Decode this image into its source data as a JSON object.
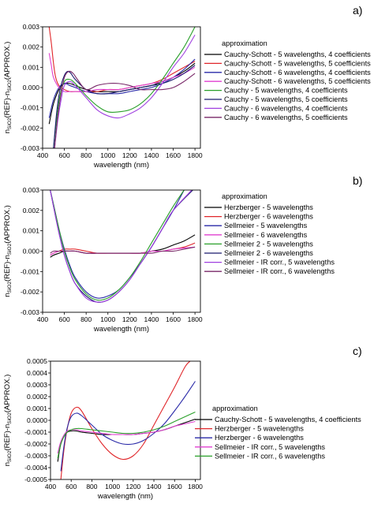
{
  "chart_data": [
    {
      "type": "line",
      "panel_label": "a)",
      "xlabel": "wavelength (nm)",
      "ylabel": "n_SiO2(REF)-n_SiO2(APPROX.)",
      "ylabel_parts": {
        "n": "n",
        "sub1": "SiO2",
        "mid": "(REF)-n",
        "sub2": "SiO2",
        "end": "(APPROX.)"
      },
      "xlim": [
        400,
        1850
      ],
      "ylim": [
        -0.003,
        0.003
      ],
      "xticks": [
        400,
        600,
        800,
        1000,
        1200,
        1400,
        1600,
        1800
      ],
      "yticks": [
        -0.003,
        -0.002,
        -0.001,
        0.0,
        0.001,
        0.002,
        0.003
      ],
      "ytick_labels": [
        "-0.003",
        "-0.002",
        "-0.001",
        "0.000",
        "0.001",
        "0.002",
        "0.003"
      ],
      "legend_title": "approximation",
      "legend_placement": "right",
      "series": [
        {
          "name": "Cauchy-Schott - 5 wavelengths, 4 coefficients",
          "color": "#000000",
          "x": [
            460,
            500,
            550,
            600,
            650,
            700,
            800,
            900,
            1000,
            1100,
            1200,
            1300,
            1400,
            1500,
            1600,
            1700,
            1800
          ],
          "y": [
            -0.0018,
            -0.0008,
            -0.0001,
            0.0002,
            0.0002,
            0.0001,
            -0.0001,
            -0.0002,
            -0.0002,
            -0.0002,
            -0.0001,
            0.0,
            0.0001,
            0.0003,
            0.0005,
            0.0008,
            0.0012
          ]
        },
        {
          "name": "Cauchy-Schott - 5 wavelengths, 5 coefficients",
          "color": "#e0262a",
          "x": [
            460,
            480,
            500,
            520,
            550,
            600,
            650,
            700,
            800,
            900,
            1000,
            1100,
            1200,
            1300,
            1400,
            1500,
            1600,
            1700,
            1800
          ],
          "y": [
            0.003,
            0.0022,
            0.0012,
            0.0005,
            0.0001,
            -0.0001,
            -0.0002,
            -0.0002,
            -0.0002,
            -0.0002,
            -0.0001,
            -0.0001,
            0.0,
            0.0001,
            0.0002,
            0.0004,
            0.0007,
            0.001,
            0.0013
          ]
        },
        {
          "name": "Cauchy-Schott - 6 wavelengths, 4 coefficients",
          "color": "#2a2aa8",
          "x": [
            460,
            500,
            550,
            600,
            650,
            700,
            800,
            900,
            1000,
            1100,
            1200,
            1300,
            1400,
            1500,
            1600,
            1700,
            1800
          ],
          "y": [
            -0.0015,
            -0.0006,
            0.0,
            0.0002,
            0.0001,
            0.0,
            -0.0002,
            -0.0003,
            -0.0003,
            -0.0003,
            -0.0002,
            -0.0001,
            0.0,
            0.0002,
            0.0005,
            0.0009,
            0.0014
          ]
        },
        {
          "name": "Cauchy-Schott - 6 wavelengths, 5 coefficients",
          "color": "#e040d0",
          "x": [
            460,
            480,
            500,
            550,
            600,
            650,
            700,
            800,
            900,
            1000,
            1100,
            1200,
            1300,
            1400,
            1500,
            1600,
            1700,
            1800
          ],
          "y": [
            0.0017,
            0.0011,
            0.0005,
            0.0,
            -0.0002,
            -0.0002,
            -0.0002,
            -0.0002,
            -0.0001,
            -0.0001,
            -0.0001,
            0.0,
            0.0001,
            0.0002,
            0.0003,
            0.0005,
            0.0007,
            0.001
          ]
        },
        {
          "name": "Cauchy - 5 wavelengths, 4 coefficients",
          "color": "#2aa02a",
          "x": [
            500,
            530,
            560,
            600,
            650,
            700,
            800,
            900,
            1000,
            1100,
            1200,
            1300,
            1400,
            1500,
            1600,
            1700,
            1800
          ],
          "y": [
            -0.003,
            -0.0015,
            -0.0004,
            0.0003,
            0.0004,
            0.0002,
            -0.0004,
            -0.0009,
            -0.0012,
            -0.0012,
            -0.0011,
            -0.0008,
            -0.0003,
            0.0004,
            0.0012,
            0.002,
            0.003
          ]
        },
        {
          "name": "Cauchy - 5 wavelengths, 5 coefficients",
          "color": "#1a1a6e",
          "x": [
            500,
            530,
            560,
            600,
            630,
            660,
            700,
            800,
            900,
            1000,
            1100,
            1200,
            1300,
            1400,
            1500,
            1600,
            1700,
            1800
          ],
          "y": [
            -0.003,
            -0.0012,
            -0.0001,
            0.0006,
            0.0008,
            0.0007,
            0.0004,
            -0.0001,
            -0.0003,
            -0.0003,
            -0.0002,
            -0.0001,
            0.0,
            0.0001,
            0.0002,
            0.0004,
            0.0007,
            0.0011
          ]
        },
        {
          "name": "Cauchy - 6 wavelengths, 4 coefficients",
          "color": "#a040e0",
          "x": [
            510,
            540,
            570,
            600,
            650,
            700,
            800,
            900,
            1000,
            1100,
            1200,
            1300,
            1400,
            1500,
            1600,
            1700,
            1800
          ],
          "y": [
            -0.003,
            -0.0016,
            -0.0006,
            0.0001,
            0.0003,
            0.0001,
            -0.0005,
            -0.0011,
            -0.0014,
            -0.0015,
            -0.0013,
            -0.001,
            -0.0005,
            0.0002,
            0.001,
            0.0017,
            0.0026
          ]
        },
        {
          "name": "Cauchy - 6 wavelengths, 5 coefficients",
          "color": "#7a2a6a",
          "x": [
            510,
            540,
            570,
            600,
            640,
            680,
            720,
            800,
            900,
            1000,
            1100,
            1200,
            1300,
            1400,
            1500,
            1600,
            1700,
            1800
          ],
          "y": [
            -0.003,
            -0.0014,
            -0.0003,
            0.0005,
            0.0008,
            0.0007,
            0.0004,
            -0.0001,
            0.0001,
            0.0002,
            0.0002,
            0.0001,
            -0.0001,
            -0.0001,
            -0.0001,
            0.0,
            0.0003,
            0.0007
          ]
        }
      ]
    },
    {
      "type": "line",
      "panel_label": "b)",
      "xlabel": "wavelength (nm)",
      "ylabel": "n_SiO2(REF)-n_SiO2(APPROX.)",
      "ylabel_parts": {
        "n": "n",
        "sub1": "SiO2",
        "mid": "(REF)-n",
        "sub2": "SiO2",
        "end": "(APPROX.)"
      },
      "xlim": [
        400,
        1850
      ],
      "ylim": [
        -0.003,
        0.003
      ],
      "xticks": [
        400,
        600,
        800,
        1000,
        1200,
        1400,
        1600,
        1800
      ],
      "yticks": [
        -0.003,
        -0.002,
        -0.001,
        0.0,
        0.001,
        0.002,
        0.003
      ],
      "ytick_labels": [
        "-0.003",
        "-0.002",
        "-0.001",
        "0.000",
        "0.001",
        "0.002",
        "0.003"
      ],
      "legend_title": "approximation",
      "legend_placement": "right",
      "series": [
        {
          "name": "Herzberger - 5 wavelengths",
          "color": "#000000",
          "x": [
            470,
            500,
            550,
            600,
            650,
            700,
            800,
            900,
            1000,
            1100,
            1200,
            1300,
            1400,
            1500,
            1600,
            1700,
            1800
          ],
          "y": [
            -0.0003,
            -0.0002,
            -0.0001,
            0.0,
            0.0,
            0.0,
            -0.0001,
            -0.0001,
            -0.0001,
            -0.0001,
            -0.0001,
            -0.0001,
            0.0,
            0.0001,
            0.0003,
            0.0005,
            0.0008
          ]
        },
        {
          "name": "Herzberger - 6 wavelengths",
          "color": "#e0262a",
          "x": [
            470,
            500,
            550,
            600,
            650,
            700,
            800,
            900,
            1000,
            1100,
            1200,
            1300,
            1400,
            1500,
            1600,
            1700,
            1800
          ],
          "y": [
            -0.0002,
            -0.0001,
            0.0,
            0.0001,
            0.0001,
            0.0001,
            0.0,
            -0.0001,
            -0.0001,
            -0.0001,
            -0.0001,
            -0.0001,
            0.0,
            0.0,
            0.0001,
            0.0002,
            0.0004
          ]
        },
        {
          "name": "Sellmeier - 5 wavelengths",
          "color": "#2a2aa8",
          "x": [
            470,
            500,
            550,
            600,
            650,
            700,
            800,
            900,
            1000,
            1100,
            1200,
            1300,
            1400,
            1500,
            1600,
            1700
          ],
          "y": [
            0.003,
            0.0023,
            0.0011,
            0.0001,
            -0.0007,
            -0.0013,
            -0.002,
            -0.0023,
            -0.0022,
            -0.0019,
            -0.0013,
            -0.0006,
            0.0002,
            0.0011,
            0.002,
            0.003
          ]
        },
        {
          "name": "Sellmeier - 6 wavelengths",
          "color": "#e040d0",
          "x": [
            470,
            500,
            550,
            600,
            650,
            700,
            800,
            900,
            1000,
            1100,
            1200,
            1300,
            1400,
            1500,
            1600,
            1800
          ],
          "y": [
            -0.0002,
            -0.0001,
            0.0,
            0.0,
            0.0,
            0.0,
            -0.0001,
            -0.0001,
            -0.0001,
            -0.0001,
            -0.0001,
            -0.0001,
            0.0,
            0.0,
            0.0001,
            0.0002
          ]
        },
        {
          "name": "Sellmeier 2 - 5 wavelengths",
          "color": "#2aa02a",
          "x": [
            470,
            500,
            550,
            600,
            650,
            700,
            800,
            900,
            1000,
            1100,
            1200,
            1300,
            1400,
            1500,
            1600,
            1700
          ],
          "y": [
            0.003,
            0.0023,
            0.0011,
            0.0,
            -0.0008,
            -0.0014,
            -0.0021,
            -0.0024,
            -0.0023,
            -0.0019,
            -0.0013,
            -0.0005,
            0.0004,
            0.0013,
            0.0022,
            0.003
          ]
        },
        {
          "name": "Sellmeier 2 - 6 wavelengths",
          "color": "#1a1a6e",
          "x": [
            470,
            500,
            550,
            600,
            650,
            700,
            800,
            900,
            1000,
            1100,
            1200,
            1300,
            1400,
            1500,
            1600,
            1780
          ],
          "y": [
            0.003,
            0.0022,
            0.0009,
            -0.0002,
            -0.001,
            -0.0016,
            -0.0022,
            -0.0025,
            -0.0024,
            -0.002,
            -0.0014,
            -0.0006,
            0.0002,
            0.0011,
            0.002,
            0.003
          ]
        },
        {
          "name": "Sellmeier  - IR corr., 5 wavelengths",
          "color": "#a040e0",
          "x": [
            470,
            500,
            550,
            600,
            650,
            700,
            800,
            900,
            1000,
            1100,
            1200,
            1300,
            1400,
            1500,
            1600,
            1770
          ],
          "y": [
            0.003,
            0.0022,
            0.0009,
            -0.0002,
            -0.001,
            -0.0016,
            -0.0023,
            -0.0025,
            -0.0024,
            -0.002,
            -0.0014,
            -0.0006,
            0.0002,
            0.0011,
            0.002,
            0.003
          ]
        },
        {
          "name": "Sellmeier  - IR corr., 6 wavelengths",
          "color": "#7a2a6a",
          "x": [
            470,
            500,
            550,
            600,
            700,
            800,
            900,
            1000,
            1100,
            1200,
            1300,
            1400,
            1500,
            1600,
            1700,
            1800
          ],
          "y": [
            -0.0001,
            0.0,
            0.0,
            0.0,
            0.0,
            -0.0001,
            -0.0001,
            -0.0001,
            -0.0001,
            -0.0001,
            -0.0001,
            -0.0001,
            0.0,
            0.0,
            0.0001,
            0.0002
          ]
        }
      ]
    },
    {
      "type": "line",
      "panel_label": "c)",
      "xlabel": "wavelength (nm)",
      "ylabel": "n_SiO2(REF)-n_SiO2(APPROX.)",
      "ylabel_parts": {
        "n": "n",
        "sub1": "SiO2",
        "mid": "(REF)-n",
        "sub2": "SiO2",
        "end": "(APPROX.)"
      },
      "xlim": [
        400,
        1850
      ],
      "ylim": [
        -0.0005,
        0.0005
      ],
      "xticks": [
        400,
        600,
        800,
        1000,
        1200,
        1400,
        1600,
        1800
      ],
      "yticks": [
        -0.0005,
        -0.0004,
        -0.0003,
        -0.0002,
        -0.0001,
        0.0,
        0.0001,
        0.0002,
        0.0003,
        0.0004,
        0.0005
      ],
      "ytick_labels": [
        "-0.0005",
        "-0.0004",
        "-0.0003",
        "-0.0002",
        "-0.0001",
        "0.0000",
        "0.0001",
        "0.0002",
        "0.0003",
        "0.0004",
        "0.0005"
      ],
      "legend_title": "approximation",
      "legend_placement": "right",
      "series": [
        {
          "name": "Cauchy-Schott - 5 wavelengths, 4 coefficients",
          "color": "#000000",
          "x": [
            470,
            500,
            550,
            600,
            650,
            700,
            800,
            900,
            1000,
            1100,
            1200,
            1300,
            1400,
            1500,
            1600,
            1700,
            1800
          ],
          "y": [
            -0.00035,
            -0.0002,
            -0.00011,
            -9e-05,
            -9e-05,
            -0.0001,
            -0.00011,
            -0.00012,
            -0.00012,
            -0.00012,
            -0.00012,
            -0.00011,
            -0.0001,
            -8e-05,
            -5e-05,
            -2e-05,
            1e-05
          ]
        },
        {
          "name": "Herzberger - 5 wavelengths",
          "color": "#e0262a",
          "x": [
            500,
            530,
            560,
            600,
            650,
            700,
            800,
            900,
            1000,
            1100,
            1200,
            1300,
            1400,
            1500,
            1600,
            1700,
            1750
          ],
          "y": [
            -0.0005,
            -0.00025,
            -8e-05,
            6e-05,
            0.00011,
            8e-05,
            -7e-05,
            -0.0002,
            -0.00029,
            -0.00033,
            -0.0003,
            -0.0002,
            -4e-05,
            0.00012,
            0.00028,
            0.00045,
            0.0005
          ]
        },
        {
          "name": "Herzberger - 6 wavelengths",
          "color": "#2a2aa8",
          "x": [
            500,
            530,
            560,
            600,
            650,
            700,
            800,
            900,
            1000,
            1100,
            1200,
            1300,
            1400,
            1500,
            1600,
            1700,
            1800
          ],
          "y": [
            -0.00043,
            -0.00022,
            -7e-05,
            3e-05,
            6e-05,
            4e-05,
            -4e-05,
            -0.00012,
            -0.00017,
            -0.0002,
            -0.0002,
            -0.00017,
            -0.00011,
            -3e-05,
            8e-05,
            0.0002,
            0.00033
          ]
        },
        {
          "name": "Sellmeier  - IR corr., 5 wavelengths",
          "color": "#e040d0",
          "x": [
            470,
            500,
            550,
            600,
            650,
            700,
            800,
            900,
            1000,
            1100,
            1200,
            1300,
            1400,
            1500,
            1600,
            1700,
            1800
          ],
          "y": [
            -0.00028,
            -0.00018,
            -0.0001,
            -8e-05,
            -8e-05,
            -9e-05,
            -0.0001,
            -0.00011,
            -0.00012,
            -0.00012,
            -0.00012,
            -0.00011,
            -0.0001,
            -8e-05,
            -5e-05,
            -3e-05,
            -1e-05
          ]
        },
        {
          "name": "Sellmeier  - IR corr., 6 wavelengths",
          "color": "#2aa02a",
          "x": [
            470,
            500,
            550,
            600,
            650,
            700,
            800,
            900,
            1000,
            1100,
            1200,
            1300,
            1400,
            1500,
            1600,
            1700,
            1800
          ],
          "y": [
            -0.00032,
            -0.0002,
            -0.00011,
            -8e-05,
            -7e-05,
            -7e-05,
            -8e-05,
            -9e-05,
            -0.0001,
            -0.00011,
            -0.00011,
            -0.0001,
            -8e-05,
            -5e-05,
            -1e-05,
            3e-05,
            7e-05
          ]
        }
      ]
    }
  ]
}
